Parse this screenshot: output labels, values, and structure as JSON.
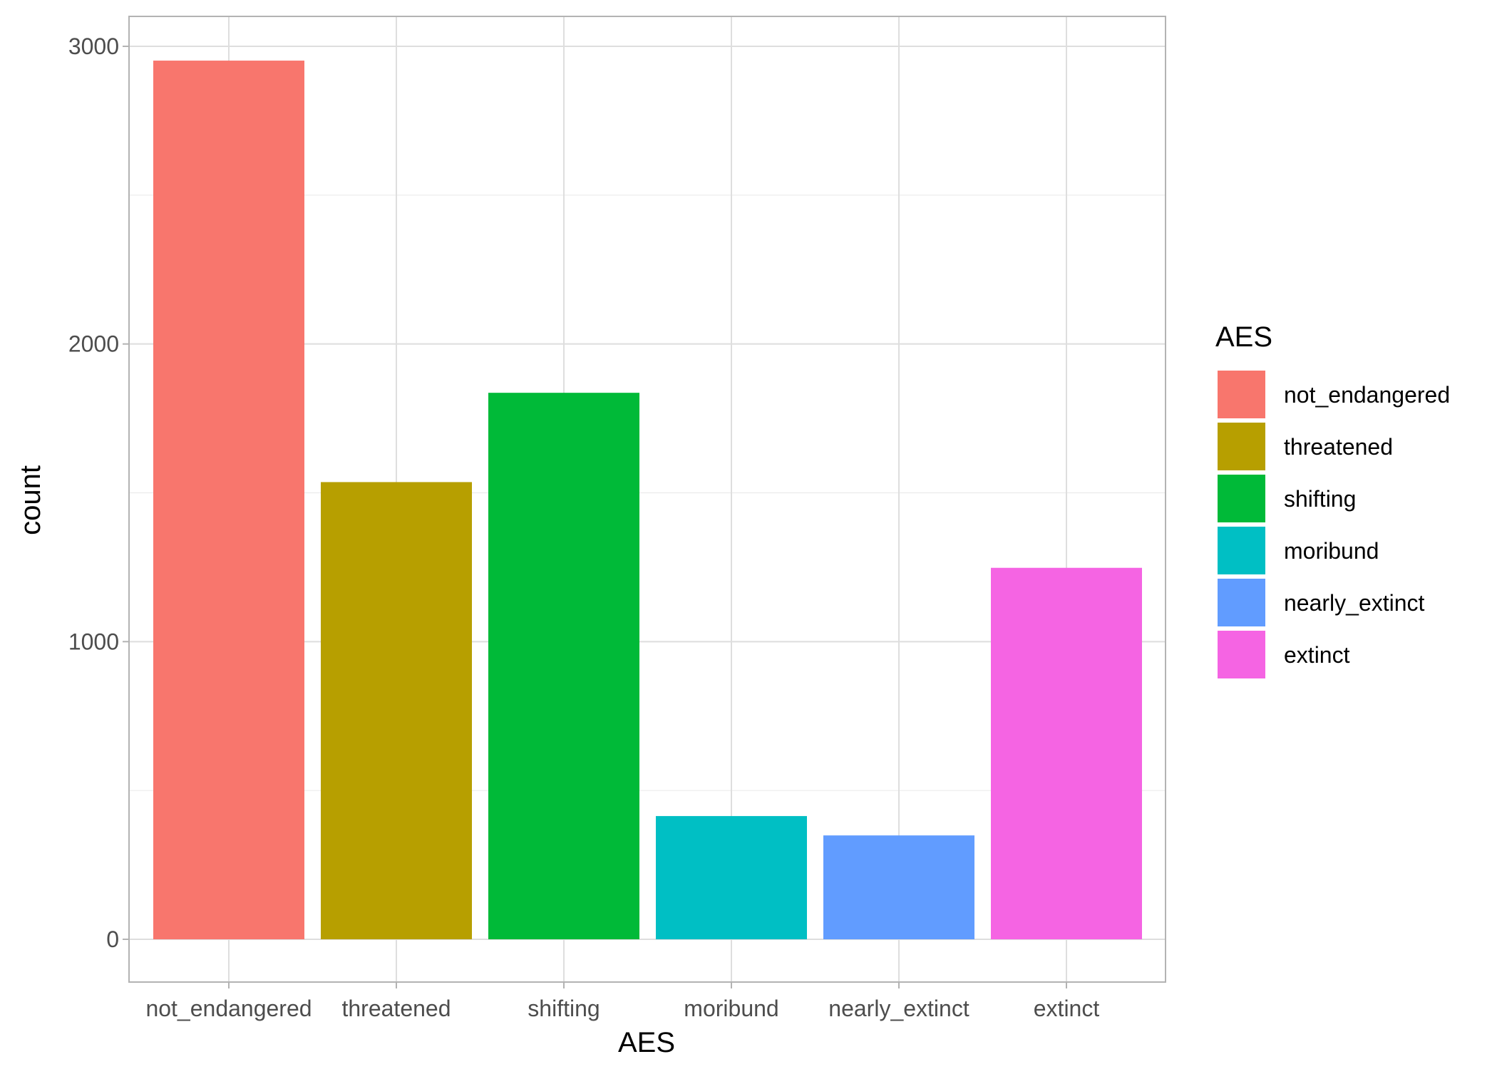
{
  "chart_data": {
    "type": "bar",
    "title": "",
    "xlabel": "AES",
    "ylabel": "count",
    "categories": [
      "not_endangered",
      "threatened",
      "shifting",
      "moribund",
      "nearly_extinct",
      "extinct"
    ],
    "values": [
      2952,
      1536,
      1836,
      414,
      349,
      1248
    ],
    "colors": [
      "#F8766D",
      "#B79F00",
      "#00BA38",
      "#00BFC4",
      "#619CFF",
      "#F564E3"
    ],
    "ylim": [
      -150,
      3100
    ],
    "yticks": [
      0,
      1000,
      2000,
      3000
    ],
    "ytick_labels": [
      "0",
      "1000",
      "2000",
      "3000"
    ],
    "grid": true,
    "legend": {
      "title": "AES",
      "position": "right",
      "entries": [
        "not_endangered",
        "threatened",
        "shifting",
        "moribund",
        "nearly_extinct",
        "extinct"
      ]
    }
  }
}
